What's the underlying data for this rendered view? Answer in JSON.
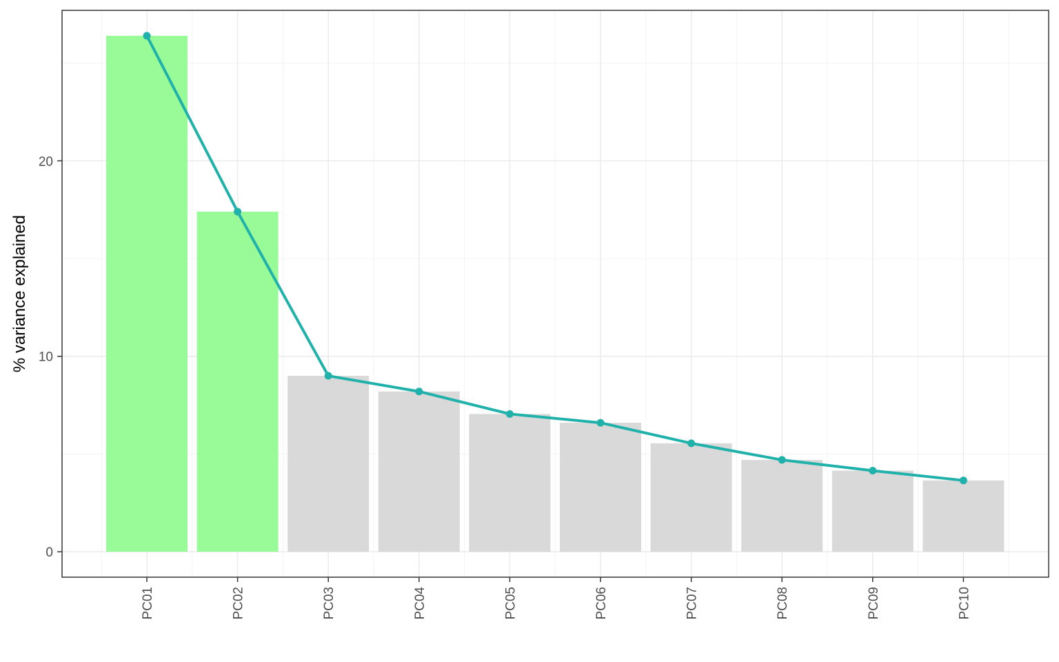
{
  "chart_data": {
    "type": "bar",
    "categories": [
      "PC01",
      "PC02",
      "PC03",
      "PC04",
      "PC05",
      "PC06",
      "PC07",
      "PC08",
      "PC09",
      "PC10"
    ],
    "values": [
      26.4,
      17.4,
      9.0,
      8.2,
      7.05,
      6.6,
      5.55,
      4.7,
      4.15,
      3.65
    ],
    "highlighted": [
      true,
      true,
      false,
      false,
      false,
      false,
      false,
      false,
      false,
      false
    ],
    "line_overlay": true,
    "xlabel": "",
    "ylabel": "% variance explained",
    "ylim": [
      -1.3,
      27.7
    ],
    "yticks": [
      0,
      10,
      20
    ],
    "grid": true,
    "legend": "none",
    "colors": {
      "highlight_bar": "#98FB98",
      "other_bar": "#D9D9D9",
      "line": "#20B2AA",
      "grid_major": "#EBEBEB",
      "grid_minor": "#F3F3F3",
      "panel_border": "#333333",
      "tick_text": "#4D4D4D"
    }
  }
}
